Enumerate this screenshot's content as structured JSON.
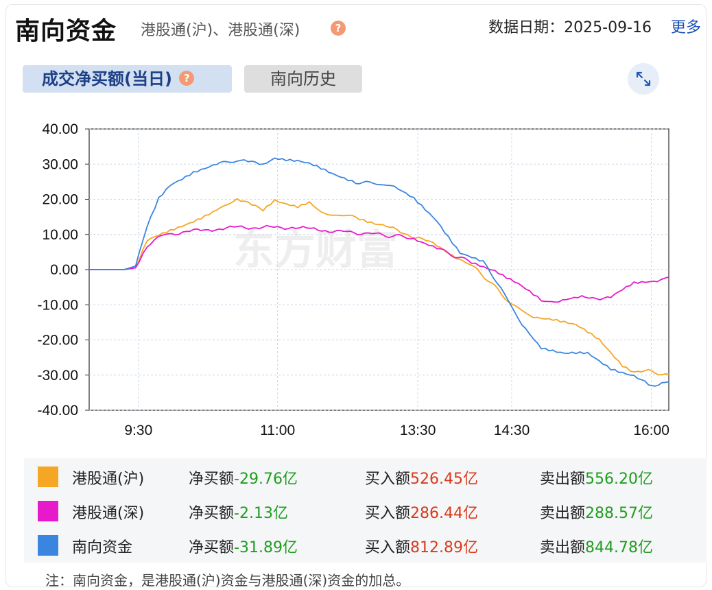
{
  "header": {
    "title": "南向资金",
    "subtitle": "港股通(沪)、港股通(深)",
    "date_label": "数据日期：2025-09-16",
    "more_label": "更多"
  },
  "tabs": {
    "active_label": "成交净买额(当日)",
    "history_label": "南向历史"
  },
  "help_icon": "?",
  "watermark": "东方财富",
  "chart_data": {
    "type": "line",
    "x_ticks": [
      "9:30",
      "11:00",
      "13:30",
      "14:30",
      "16:00"
    ],
    "y_ticks": [
      "40.00",
      "30.00",
      "20.00",
      "10.00",
      "0.00",
      "-10.00",
      "-20.00",
      "-30.00",
      "-40.00"
    ],
    "ylim": [
      -40,
      40
    ],
    "grid": true,
    "series": [
      {
        "name": "港股通(沪)",
        "color": "#f5a623",
        "points": [
          [
            0,
            0
          ],
          [
            0.06,
            0
          ],
          [
            0.08,
            0.5
          ],
          [
            0.1,
            8
          ],
          [
            0.14,
            11
          ],
          [
            0.18,
            14
          ],
          [
            0.22,
            17
          ],
          [
            0.255,
            20
          ],
          [
            0.3,
            17
          ],
          [
            0.32,
            20
          ],
          [
            0.36,
            18
          ],
          [
            0.38,
            19
          ],
          [
            0.4,
            16
          ],
          [
            0.46,
            15
          ],
          [
            0.5,
            13
          ],
          [
            0.55,
            10
          ],
          [
            0.6,
            7
          ],
          [
            0.64,
            3
          ],
          [
            0.67,
            0
          ],
          [
            0.7,
            -5
          ],
          [
            0.73,
            -10
          ],
          [
            0.76,
            -13
          ],
          [
            0.8,
            -14
          ],
          [
            0.84,
            -16
          ],
          [
            0.88,
            -20
          ],
          [
            0.92,
            -27
          ],
          [
            0.94,
            -29
          ],
          [
            0.965,
            -29
          ],
          [
            1,
            -29.76
          ]
        ]
      },
      {
        "name": "港股通(深)",
        "color": "#e61acb",
        "points": [
          [
            0,
            0
          ],
          [
            0.06,
            0
          ],
          [
            0.08,
            0.5
          ],
          [
            0.1,
            7
          ],
          [
            0.13,
            10
          ],
          [
            0.18,
            11
          ],
          [
            0.25,
            12
          ],
          [
            0.35,
            12
          ],
          [
            0.42,
            11
          ],
          [
            0.5,
            10
          ],
          [
            0.56,
            9
          ],
          [
            0.6,
            6
          ],
          [
            0.66,
            2
          ],
          [
            0.7,
            0
          ],
          [
            0.74,
            -4
          ],
          [
            0.78,
            -9
          ],
          [
            0.81,
            -9
          ],
          [
            0.85,
            -8
          ],
          [
            0.9,
            -8
          ],
          [
            0.94,
            -4
          ],
          [
            0.98,
            -3
          ],
          [
            1,
            -2.13
          ]
        ]
      },
      {
        "name": "南向资金",
        "color": "#3a85e0",
        "points": [
          [
            0,
            0
          ],
          [
            0.06,
            0
          ],
          [
            0.08,
            1
          ],
          [
            0.1,
            12
          ],
          [
            0.12,
            20
          ],
          [
            0.14,
            24
          ],
          [
            0.18,
            28
          ],
          [
            0.22,
            30
          ],
          [
            0.255,
            31
          ],
          [
            0.3,
            30
          ],
          [
            0.32,
            32
          ],
          [
            0.36,
            31
          ],
          [
            0.38,
            30
          ],
          [
            0.42,
            27
          ],
          [
            0.46,
            25
          ],
          [
            0.52,
            24
          ],
          [
            0.56,
            20
          ],
          [
            0.6,
            14
          ],
          [
            0.64,
            5
          ],
          [
            0.68,
            2
          ],
          [
            0.71,
            -5
          ],
          [
            0.74,
            -14
          ],
          [
            0.78,
            -22
          ],
          [
            0.82,
            -24
          ],
          [
            0.86,
            -24
          ],
          [
            0.9,
            -28
          ],
          [
            0.94,
            -30
          ],
          [
            0.965,
            -33
          ],
          [
            1,
            -31.89
          ]
        ]
      }
    ],
    "x_range_note": "09:15 to 16:10"
  },
  "legend": [
    {
      "name": "港股通(沪)",
      "color": "#f5a623",
      "net_label": "净买额",
      "net_value": "-29.76亿",
      "buy_label": "买入额",
      "buy_value": "526.45亿",
      "sell_label": "卖出额",
      "sell_value": "556.20亿"
    },
    {
      "name": "港股通(深)",
      "color": "#e61acb",
      "net_label": "净买额",
      "net_value": "-2.13亿",
      "buy_label": "买入额",
      "buy_value": "286.44亿",
      "sell_label": "卖出额",
      "sell_value": "288.57亿"
    },
    {
      "name": "南向资金",
      "color": "#3a85e0",
      "net_label": "净买额",
      "net_value": "-31.89亿",
      "buy_label": "买入额",
      "buy_value": "812.89亿",
      "sell_label": "卖出额",
      "sell_value": "844.78亿"
    }
  ],
  "note": "注：南向资金，是港股通(沪)资金与港股通(深)资金的加总。"
}
